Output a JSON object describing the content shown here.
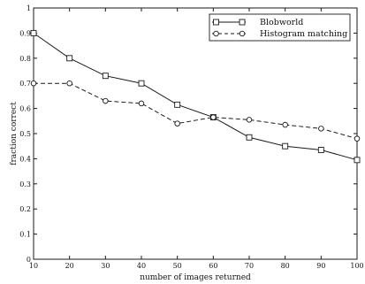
{
  "chart_data": {
    "type": "line",
    "title": "",
    "xlabel": "number of images returned",
    "ylabel": "fraction correct",
    "x": [
      10,
      20,
      30,
      40,
      50,
      60,
      70,
      80,
      90,
      100
    ],
    "xlim": [
      10,
      100
    ],
    "ylim": [
      0,
      1
    ],
    "xticks": [
      "10",
      "20",
      "30",
      "40",
      "50",
      "60",
      "70",
      "80",
      "90",
      "100"
    ],
    "yticks": [
      "0",
      "0.1",
      "0.2",
      "0.3",
      "0.4",
      "0.5",
      "0.6",
      "0.7",
      "0.8",
      "0.9",
      "1"
    ],
    "grid": false,
    "legend_position": "top-right",
    "series": [
      {
        "name": "Blobworld",
        "marker": "square",
        "line_style": "solid",
        "values": [
          0.9,
          0.8,
          0.73,
          0.7,
          0.615,
          0.565,
          0.485,
          0.45,
          0.435,
          0.395
        ]
      },
      {
        "name": "Histogram matching",
        "marker": "circle",
        "line_style": "dashed",
        "values": [
          0.7,
          0.7,
          0.63,
          0.62,
          0.54,
          0.565,
          0.555,
          0.535,
          0.52,
          0.48
        ]
      }
    ]
  },
  "colors": {
    "line": "#1a1a1a",
    "background": "#ffffff"
  }
}
